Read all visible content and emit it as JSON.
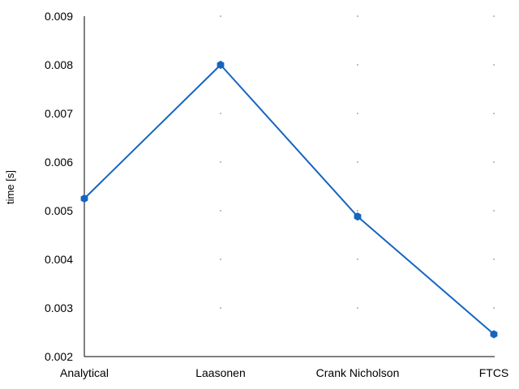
{
  "chart_data": {
    "type": "line",
    "title": "",
    "xlabel": "",
    "ylabel": "time [s]",
    "categories": [
      "Analytical",
      "Laasonen",
      "Crank Nicholson",
      "FTCS"
    ],
    "series": [
      {
        "values": [
          0.00525,
          0.008,
          0.00488,
          0.00246
        ]
      }
    ],
    "ylim": [
      0.002,
      0.009
    ],
    "yticks": [
      "0.002",
      "0.003",
      "0.004",
      "0.005",
      "0.006",
      "0.007",
      "0.008",
      "0.009"
    ],
    "grid": "dots",
    "legend": "none",
    "colors": {
      "series": "#1565c0",
      "axis": "#000000",
      "grid": "#000000"
    }
  }
}
